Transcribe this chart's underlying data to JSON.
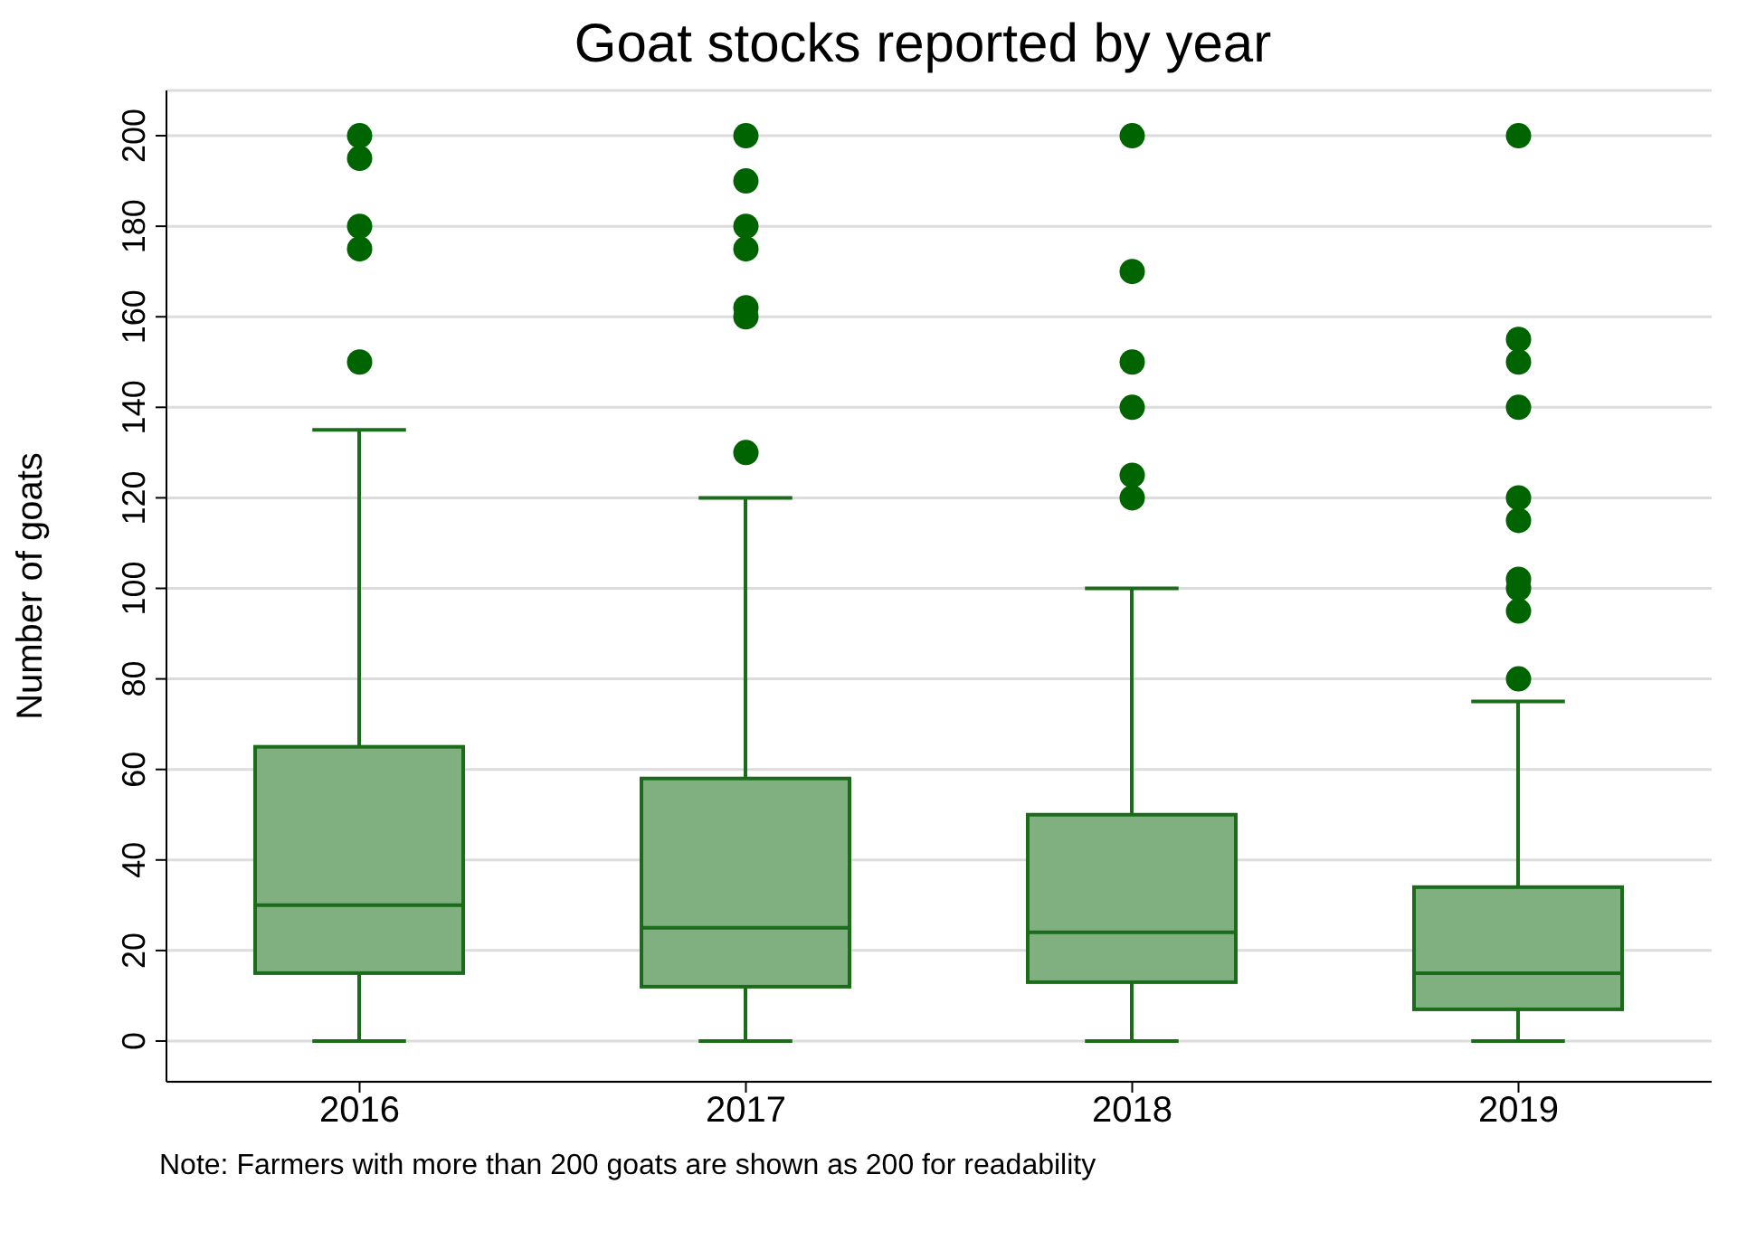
{
  "chart_data": {
    "type": "box",
    "title": "Goat stocks reported by year",
    "ylabel": "Number of goats",
    "categories": [
      "2016",
      "2017",
      "2018",
      "2019"
    ],
    "color": "#80b080",
    "boxes": [
      {
        "low": 0,
        "q1": 15,
        "median": 30,
        "q3": 65,
        "high": 135,
        "outliers": [
          200,
          195,
          180,
          175,
          150
        ]
      },
      {
        "low": 0,
        "q1": 12,
        "median": 25,
        "q3": 58,
        "high": 120,
        "outliers": [
          200,
          190,
          180,
          175,
          162,
          160,
          130
        ]
      },
      {
        "low": 0,
        "q1": 13,
        "median": 24,
        "q3": 50,
        "high": 100,
        "outliers": [
          200,
          170,
          150,
          140,
          125,
          120
        ]
      },
      {
        "low": 0,
        "q1": 7,
        "median": 15,
        "q3": 34,
        "high": 75,
        "outliers": [
          200,
          155,
          150,
          140,
          120,
          115,
          102,
          100,
          95,
          80
        ]
      }
    ],
    "ylim": [
      -9,
      210
    ],
    "yticks": [
      0,
      20,
      40,
      60,
      80,
      100,
      120,
      140,
      160,
      180,
      200
    ],
    "grid": "y",
    "annotations": [
      "Note: Farmers with more than 200 goats are shown as 200 for readability"
    ]
  }
}
